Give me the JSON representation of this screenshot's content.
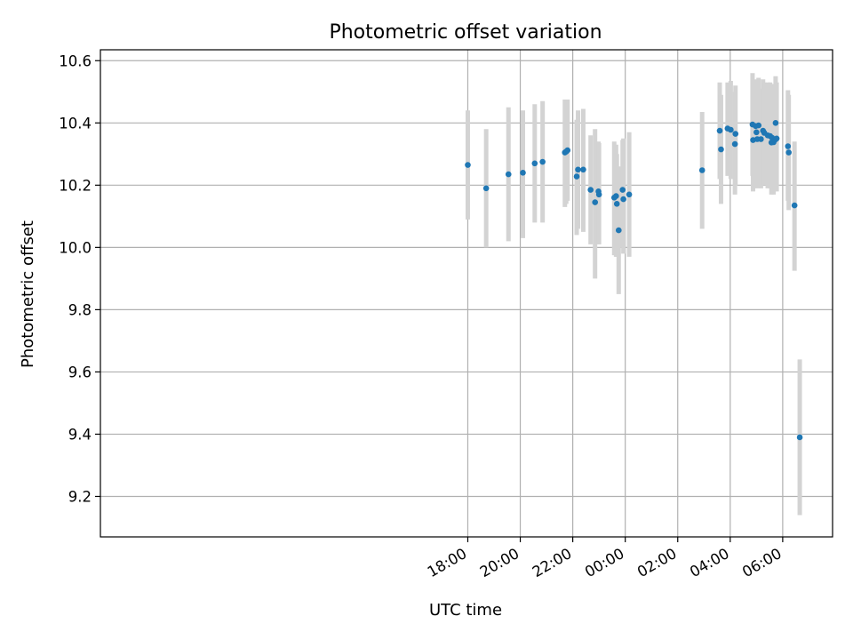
{
  "chart_data": {
    "type": "scatter",
    "title": "Photometric offset variation",
    "xlabel": "UTC time",
    "ylabel": "Photometric offset",
    "grid": true,
    "x_unit": "hours since 00:00 UTC",
    "xlim": [
      -20.0,
      7.9
    ],
    "ylim": [
      9.07,
      10.635
    ],
    "x_ticks": [
      {
        "value": -6,
        "label": "18:00"
      },
      {
        "value": -4,
        "label": "20:00"
      },
      {
        "value": -2,
        "label": "22:00"
      },
      {
        "value": 0,
        "label": "00:00"
      },
      {
        "value": 2,
        "label": "02:00"
      },
      {
        "value": 4,
        "label": "04:00"
      },
      {
        "value": 6,
        "label": "06:00"
      }
    ],
    "y_ticks": [
      {
        "value": 9.2,
        "label": "9.2"
      },
      {
        "value": 9.4,
        "label": "9.4"
      },
      {
        "value": 9.6,
        "label": "9.6"
      },
      {
        "value": 9.8,
        "label": "9.8"
      },
      {
        "value": 10.0,
        "label": "10.0"
      },
      {
        "value": 10.2,
        "label": "10.2"
      },
      {
        "value": 10.4,
        "label": "10.4"
      },
      {
        "value": 10.6,
        "label": "10.6"
      }
    ],
    "colors": {
      "marker": "#1f77b4",
      "errorbar": "#d3d3d3",
      "grid": "#b0b0b0"
    },
    "points": [
      {
        "x": -6.0,
        "y": 10.265,
        "lo": 10.09,
        "hi": 10.44
      },
      {
        "x": -5.3,
        "y": 10.19,
        "lo": 10.0,
        "hi": 10.38
      },
      {
        "x": -4.45,
        "y": 10.235,
        "lo": 10.02,
        "hi": 10.45
      },
      {
        "x": -3.9,
        "y": 10.24,
        "lo": 10.03,
        "hi": 10.44
      },
      {
        "x": -3.45,
        "y": 10.27,
        "lo": 10.08,
        "hi": 10.46
      },
      {
        "x": -3.15,
        "y": 10.275,
        "lo": 10.08,
        "hi": 10.47
      },
      {
        "x": -2.3,
        "y": 10.305,
        "lo": 10.13,
        "hi": 10.475
      },
      {
        "x": -2.25,
        "y": 10.308,
        "lo": 10.14,
        "hi": 10.475
      },
      {
        "x": -2.2,
        "y": 10.312,
        "lo": 10.15,
        "hi": 10.475
      },
      {
        "x": -1.85,
        "y": 10.228,
        "lo": 10.04,
        "hi": 10.41
      },
      {
        "x": -1.8,
        "y": 10.25,
        "lo": 10.06,
        "hi": 10.44
      },
      {
        "x": -1.6,
        "y": 10.25,
        "lo": 10.05,
        "hi": 10.445
      },
      {
        "x": -1.32,
        "y": 10.185,
        "lo": 10.01,
        "hi": 10.36
      },
      {
        "x": -1.15,
        "y": 10.145,
        "lo": 9.9,
        "hi": 10.38
      },
      {
        "x": -1.02,
        "y": 10.18,
        "lo": 10.01,
        "hi": 10.34
      },
      {
        "x": -1.0,
        "y": 10.17,
        "lo": 10.01,
        "hi": 10.335
      },
      {
        "x": -0.42,
        "y": 10.16,
        "lo": 9.975,
        "hi": 10.34
      },
      {
        "x": -0.35,
        "y": 10.165,
        "lo": 9.97,
        "hi": 10.33
      },
      {
        "x": -0.32,
        "y": 10.14,
        "lo": 9.97,
        "hi": 10.3
      },
      {
        "x": -0.25,
        "y": 10.055,
        "lo": 9.85,
        "hi": 10.26
      },
      {
        "x": -0.1,
        "y": 10.185,
        "lo": 10.0,
        "hi": 10.345
      },
      {
        "x": -0.07,
        "y": 10.155,
        "lo": 9.98,
        "hi": 10.35
      },
      {
        "x": 0.15,
        "y": 10.17,
        "lo": 9.97,
        "hi": 10.37
      },
      {
        "x": 2.93,
        "y": 10.248,
        "lo": 10.06,
        "hi": 10.435
      },
      {
        "x": 3.6,
        "y": 10.375,
        "lo": 10.22,
        "hi": 10.53
      },
      {
        "x": 3.65,
        "y": 10.315,
        "lo": 10.14,
        "hi": 10.49
      },
      {
        "x": 3.9,
        "y": 10.382,
        "lo": 10.23,
        "hi": 10.53
      },
      {
        "x": 4.02,
        "y": 10.378,
        "lo": 10.22,
        "hi": 10.535
      },
      {
        "x": 4.18,
        "y": 10.332,
        "lo": 10.17,
        "hi": 10.5
      },
      {
        "x": 4.2,
        "y": 10.365,
        "lo": 10.2,
        "hi": 10.52
      },
      {
        "x": 4.85,
        "y": 10.395,
        "lo": 10.23,
        "hi": 10.56
      },
      {
        "x": 4.87,
        "y": 10.345,
        "lo": 10.18,
        "hi": 10.5
      },
      {
        "x": 4.97,
        "y": 10.39,
        "lo": 10.22,
        "hi": 10.54
      },
      {
        "x": 5.0,
        "y": 10.37,
        "lo": 10.2,
        "hi": 10.53
      },
      {
        "x": 5.03,
        "y": 10.348,
        "lo": 10.19,
        "hi": 10.505
      },
      {
        "x": 5.08,
        "y": 10.392,
        "lo": 10.23,
        "hi": 10.545
      },
      {
        "x": 5.17,
        "y": 10.348,
        "lo": 10.19,
        "hi": 10.51
      },
      {
        "x": 5.25,
        "y": 10.375,
        "lo": 10.21,
        "hi": 10.54
      },
      {
        "x": 5.3,
        "y": 10.368,
        "lo": 10.2,
        "hi": 10.53
      },
      {
        "x": 5.43,
        "y": 10.36,
        "lo": 10.19,
        "hi": 10.53
      },
      {
        "x": 5.52,
        "y": 10.358,
        "lo": 10.19,
        "hi": 10.53
      },
      {
        "x": 5.57,
        "y": 10.337,
        "lo": 10.17,
        "hi": 10.5
      },
      {
        "x": 5.6,
        "y": 10.352,
        "lo": 10.18,
        "hi": 10.525
      },
      {
        "x": 5.65,
        "y": 10.338,
        "lo": 10.17,
        "hi": 10.51
      },
      {
        "x": 5.7,
        "y": 10.345,
        "lo": 10.18,
        "hi": 10.515
      },
      {
        "x": 5.73,
        "y": 10.4,
        "lo": 10.24,
        "hi": 10.55
      },
      {
        "x": 5.77,
        "y": 10.35,
        "lo": 10.18,
        "hi": 10.53
      },
      {
        "x": 6.2,
        "y": 10.325,
        "lo": 10.15,
        "hi": 10.505
      },
      {
        "x": 6.23,
        "y": 10.305,
        "lo": 10.12,
        "hi": 10.49
      },
      {
        "x": 6.45,
        "y": 10.135,
        "lo": 9.925,
        "hi": 10.34
      },
      {
        "x": 6.65,
        "y": 9.39,
        "lo": 9.14,
        "hi": 9.64
      }
    ]
  }
}
